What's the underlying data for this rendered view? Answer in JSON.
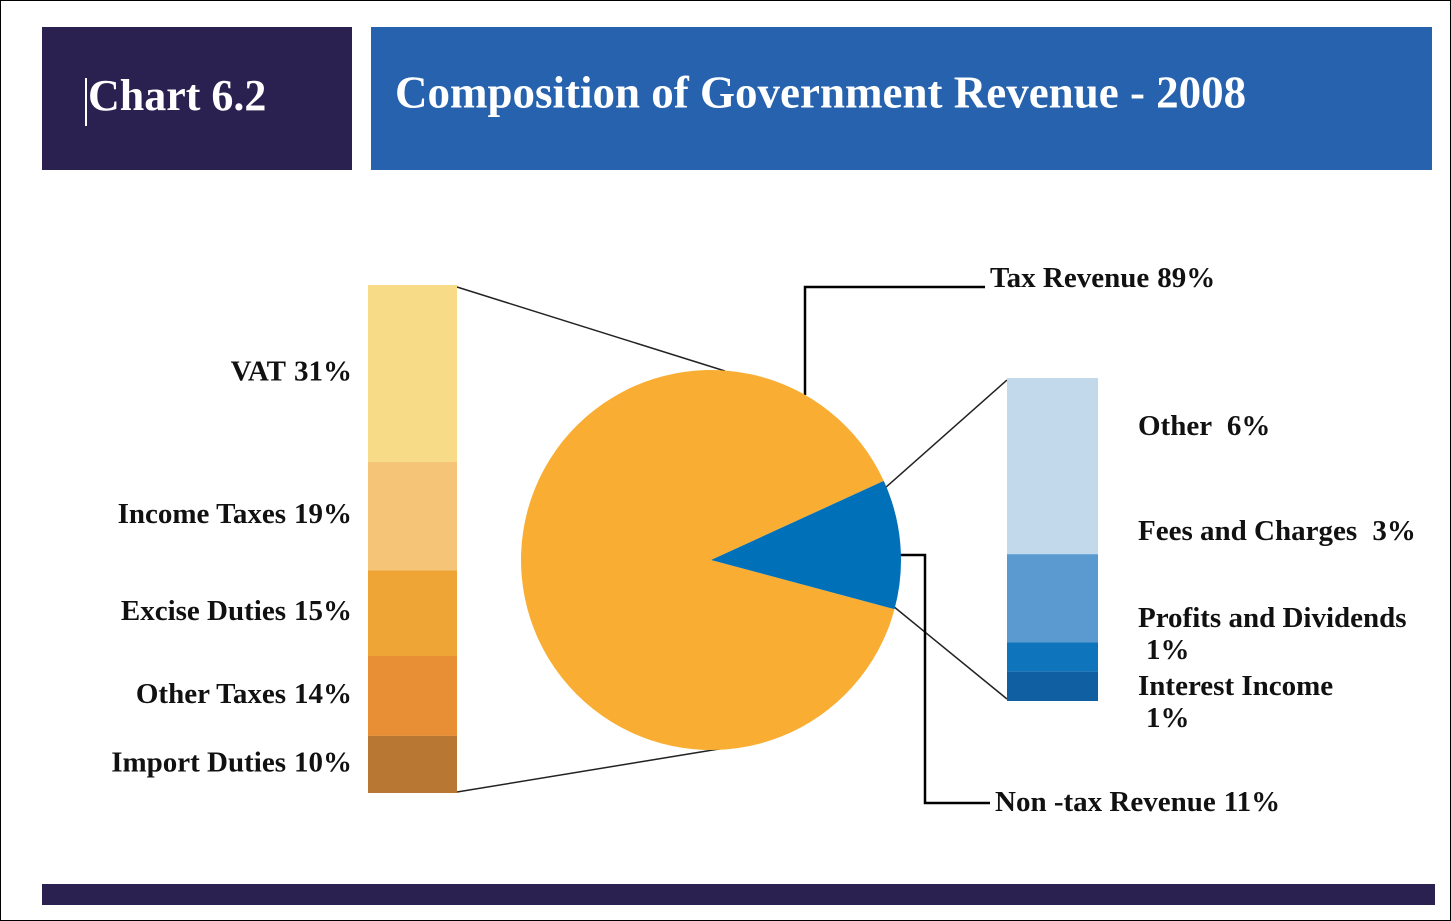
{
  "chart_data": {
    "type": "pie",
    "chart_number": "Chart 6.2",
    "title": "Composition of Government Revenue - 2008",
    "categories": [
      "Tax Revenue",
      "Non -tax Revenue"
    ],
    "values": [
      89,
      11
    ],
    "value_labels": [
      "89%",
      "11%"
    ],
    "colors": [
      "#F9AE33",
      "#0070B8"
    ],
    "tax_breakdown": {
      "categories": [
        "VAT",
        "Income Taxes",
        "Excise Duties",
        "Other Taxes",
        "Import Duties"
      ],
      "values": [
        31,
        19,
        15,
        14,
        10
      ],
      "value_labels": [
        "31%",
        "19%",
        "15%",
        "14%",
        "10%"
      ],
      "colors": [
        "#F8DB87",
        "#F5C476",
        "#EFA536",
        "#E88F35",
        "#B87834"
      ]
    },
    "non_tax_breakdown": {
      "categories": [
        "Other",
        "Fees and Charges",
        "Profits and Dividends",
        "Interest Income"
      ],
      "values": [
        6,
        3,
        1,
        1
      ],
      "value_labels": [
        "6%",
        "3%",
        "1%",
        "1%"
      ],
      "colors": [
        "#C2D8EB",
        "#5B9AD0",
        "#0E74BB",
        "#0F5FA2"
      ]
    }
  }
}
